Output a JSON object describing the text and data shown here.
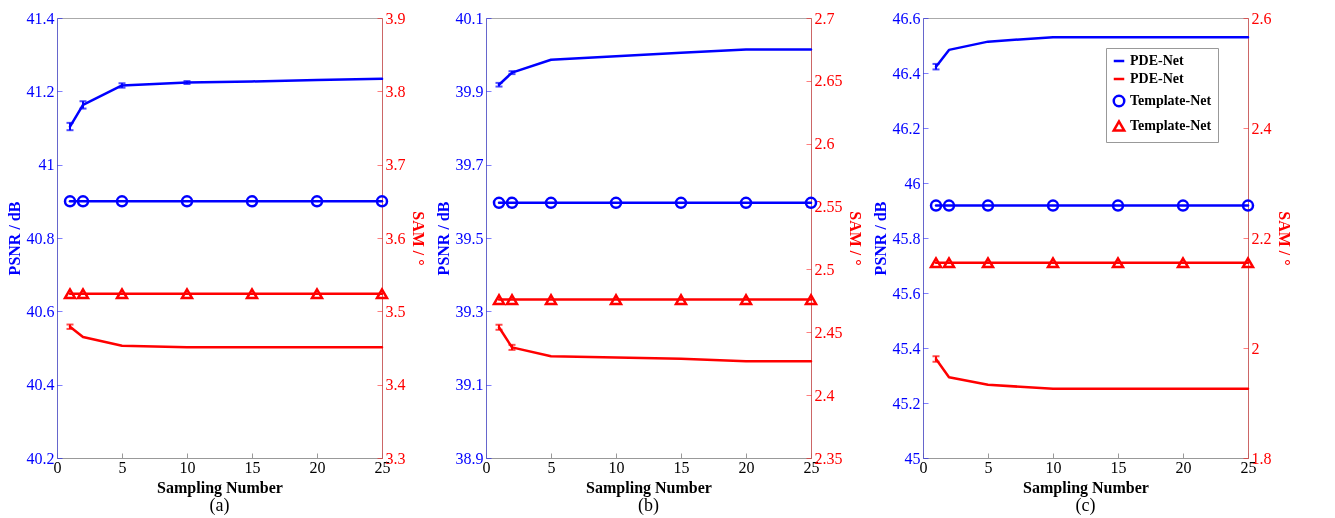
{
  "chart_data": [
    {
      "type": "line",
      "title": "(a)",
      "xlabel": "Sampling Number",
      "ylabel": "PSNR / dB",
      "y2label": "SAM / °",
      "x": [
        1,
        2,
        5,
        10,
        15,
        20,
        25
      ],
      "xlim": [
        0,
        25
      ],
      "xticks": [
        0,
        5,
        10,
        15,
        20,
        25
      ],
      "ylim": [
        40.2,
        41.4
      ],
      "yticks": [
        40.2,
        40.4,
        40.6,
        40.8,
        41,
        41.2,
        41.4
      ],
      "y2lim": [
        3.3,
        3.9
      ],
      "y2ticks": [
        3.3,
        3.4,
        3.5,
        3.6,
        3.7,
        3.8,
        3.9
      ],
      "series": [
        {
          "color": "#0000ff",
          "axis": "y",
          "marker": "none",
          "values": [
            41.104,
            41.163,
            41.216,
            41.224,
            41.227,
            41.231,
            41.234
          ],
          "errors": [
            0.01,
            0.01,
            0.006,
            0.004,
            null,
            null,
            null
          ]
        },
        {
          "color": "#ff0000",
          "axis": "y2",
          "marker": "none",
          "values": [
            3.479,
            3.465,
            3.453,
            3.451,
            3.451,
            3.451,
            3.451
          ],
          "errors": [
            0.003,
            null,
            null,
            null,
            null,
            null,
            null
          ]
        },
        {
          "color": "#0000ff",
          "axis": "y",
          "marker": "circle",
          "values": [
            40.9,
            40.9,
            40.9,
            40.9,
            40.9,
            40.9,
            40.9
          ]
        },
        {
          "color": "#ff0000",
          "axis": "y2",
          "marker": "triangle",
          "values": [
            3.524,
            3.524,
            3.524,
            3.524,
            3.524,
            3.524,
            3.524
          ]
        }
      ]
    },
    {
      "type": "line",
      "title": "(b)",
      "xlabel": "Sampling Number",
      "ylabel": "PSNR / dB",
      "y2label": "SAM / °",
      "x": [
        1,
        2,
        5,
        10,
        15,
        20,
        25
      ],
      "xlim": [
        0,
        25
      ],
      "xticks": [
        0,
        5,
        10,
        15,
        20,
        25
      ],
      "ylim": [
        38.9,
        40.1
      ],
      "yticks": [
        38.9,
        39.1,
        39.3,
        39.5,
        39.7,
        39.9,
        40.1
      ],
      "y2lim": [
        2.35,
        2.7
      ],
      "y2ticks": [
        2.35,
        2.4,
        2.45,
        2.5,
        2.55,
        2.6,
        2.65,
        2.7
      ],
      "series": [
        {
          "color": "#0000ff",
          "axis": "y",
          "marker": "none",
          "values": [
            39.918,
            39.951,
            39.986,
            39.996,
            40.005,
            40.014,
            40.014
          ],
          "errors": [
            0.005,
            0.004,
            null,
            null,
            null,
            null,
            null
          ]
        },
        {
          "color": "#ff0000",
          "axis": "y2",
          "marker": "none",
          "values": [
            2.454,
            2.438,
            2.431,
            2.43,
            2.429,
            2.427,
            2.427
          ],
          "errors": [
            0.002,
            0.002,
            null,
            null,
            null,
            null,
            null
          ]
        },
        {
          "color": "#0000ff",
          "axis": "y",
          "marker": "circle",
          "values": [
            39.596,
            39.596,
            39.596,
            39.596,
            39.596,
            39.596,
            39.596
          ]
        },
        {
          "color": "#ff0000",
          "axis": "y2",
          "marker": "triangle",
          "values": [
            2.476,
            2.476,
            2.476,
            2.476,
            2.476,
            2.476,
            2.476
          ]
        }
      ]
    },
    {
      "type": "line",
      "title": "(c)",
      "xlabel": "Sampling Number",
      "ylabel": "PSNR / dB",
      "y2label": "SAM / °",
      "legend": "top right",
      "x": [
        1,
        2,
        5,
        10,
        15,
        20,
        25
      ],
      "xlim": [
        0,
        25
      ],
      "xticks": [
        0,
        5,
        10,
        15,
        20,
        25
      ],
      "ylim": [
        45,
        46.6
      ],
      "yticks": [
        45,
        45.2,
        45.4,
        45.6,
        45.8,
        46,
        46.2,
        46.4,
        46.6
      ],
      "y2lim": [
        1.8,
        2.6
      ],
      "y2ticks": [
        1.8,
        2,
        2.2,
        2.4,
        2.6
      ],
      "series": [
        {
          "name": "PDE-Net",
          "color": "#0000ff",
          "axis": "y",
          "marker": "none",
          "values": [
            46.423,
            46.484,
            46.514,
            46.53,
            46.53,
            46.53,
            46.53
          ],
          "errors": [
            0.01,
            null,
            null,
            null,
            null,
            null,
            null
          ]
        },
        {
          "name": "PDE-Net",
          "color": "#ff0000",
          "axis": "y2",
          "marker": "none",
          "values": [
            1.98,
            1.947,
            1.933,
            1.926,
            1.926,
            1.926,
            1.926
          ],
          "errors": [
            0.005,
            null,
            null,
            null,
            null,
            null,
            null
          ]
        },
        {
          "name": "Template-Net",
          "color": "#0000ff",
          "axis": "y",
          "marker": "circle",
          "values": [
            45.918,
            45.918,
            45.918,
            45.918,
            45.918,
            45.918,
            45.918
          ]
        },
        {
          "name": "Template-Net",
          "color": "#ff0000",
          "axis": "y2",
          "marker": "triangle",
          "values": [
            2.155,
            2.155,
            2.155,
            2.155,
            2.155,
            2.155,
            2.155
          ]
        }
      ]
    }
  ]
}
